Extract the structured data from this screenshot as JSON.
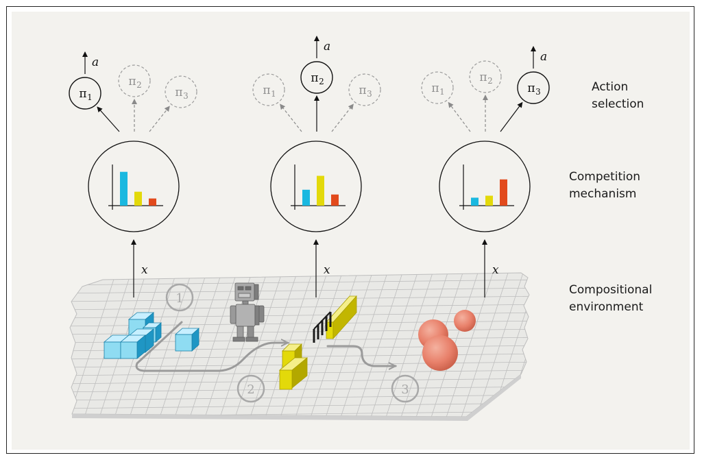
{
  "labels": {
    "action_line1": "Action",
    "action_line2": "selection",
    "competition_line1": "Competition",
    "competition_line2": "mechanism",
    "environment_line1": "Compositional",
    "environment_line2": "environment"
  },
  "math": {
    "action": "a",
    "observation": "x",
    "policy_symbol": "π",
    "policy_subscripts": [
      "1",
      "2",
      "3"
    ]
  },
  "panels": [
    {
      "selected_policy": 1,
      "bar_values": [
        0.85,
        0.35,
        0.18
      ]
    },
    {
      "selected_policy": 2,
      "bar_values": [
        0.4,
        0.75,
        0.28
      ]
    },
    {
      "selected_policy": 3,
      "bar_values": [
        0.2,
        0.25,
        0.66
      ]
    }
  ],
  "environment": {
    "task_markers": [
      "1",
      "2",
      "3"
    ]
  },
  "colors": {
    "bar_colors": [
      "#1ab8e0",
      "#e3d90a",
      "#e24a1c"
    ],
    "background": "#f3f2ee",
    "grid": "#b9b9b9",
    "cube_front": "#8fdcf2",
    "cube_side": "#1f96c4",
    "bar_obstacle": "#e3d90a",
    "sphere": "#e8806a",
    "robot": "#9a9a9a",
    "selected_stroke": "#111111",
    "unselected_stroke": "#9a9a9a"
  }
}
